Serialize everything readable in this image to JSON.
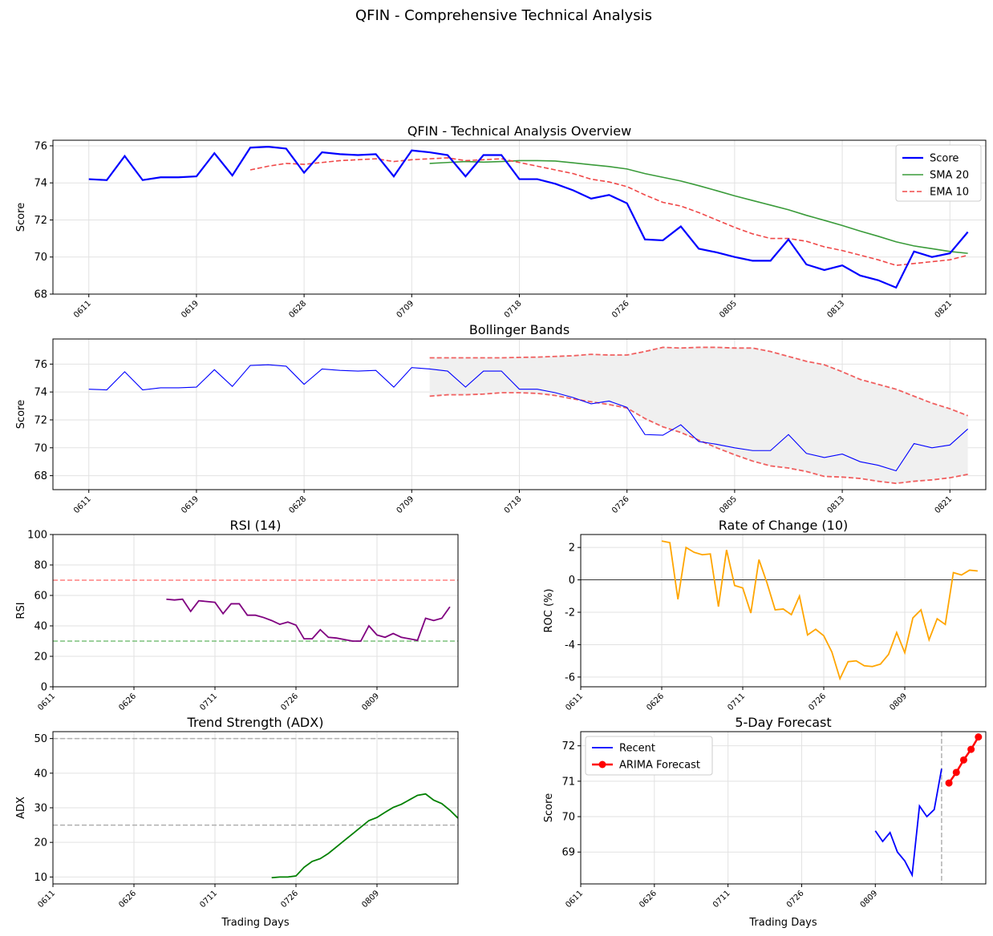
{
  "figure_title": "QFIN - Comprehensive Technical Analysis",
  "colors": {
    "score": "#0000ff",
    "sma": "#3a9b3a",
    "ema": "#f04848",
    "band": "#f06060",
    "band_fill": "#f0f0f0",
    "rsi": "#800080",
    "rsi_over": "#ff8080",
    "rsi_under": "#7cc07c",
    "roc": "#ffa500",
    "adx": "#008000",
    "ref_line": "#b0b0b0",
    "forecast": "#ff0000"
  },
  "chart_data": [
    {
      "id": "overview",
      "type": "line",
      "title": "QFIN - Technical Analysis Overview",
      "ylabel": "Score",
      "xlim": [
        -2,
        50
      ],
      "ylim": [
        68,
        76.3
      ],
      "yticks": [
        68,
        70,
        72,
        74,
        76
      ],
      "xticks": [
        {
          "x": 0,
          "label": "0611"
        },
        {
          "x": 6,
          "label": "0619"
        },
        {
          "x": 12,
          "label": "0628"
        },
        {
          "x": 18,
          "label": "0709"
        },
        {
          "x": 24,
          "label": "0718"
        },
        {
          "x": 30,
          "label": "0726"
        },
        {
          "x": 36,
          "label": "0805"
        },
        {
          "x": 42,
          "label": "0813"
        },
        {
          "x": 48,
          "label": "0821"
        }
      ],
      "legend": "upper right",
      "series": [
        {
          "name": "Score",
          "style": "solid",
          "start": 0,
          "values": [
            74.2,
            74.15,
            75.45,
            74.15,
            74.3,
            74.3,
            74.35,
            75.6,
            74.4,
            75.9,
            75.95,
            75.85,
            74.55,
            75.65,
            75.55,
            75.5,
            75.55,
            74.35,
            75.75,
            75.65,
            75.5,
            74.35,
            75.5,
            75.5,
            74.2,
            74.2,
            73.95,
            73.6,
            73.15,
            73.35,
            72.9,
            70.95,
            70.9,
            71.65,
            70.45,
            70.25,
            70.0,
            69.8,
            69.8,
            70.95,
            69.6,
            69.3,
            69.55,
            69.0,
            68.75,
            68.35,
            70.3,
            70.0,
            70.2,
            71.35
          ]
        },
        {
          "name": "SMA 20",
          "style": "solid",
          "start": 19,
          "values": [
            75.05,
            75.1,
            75.15,
            75.12,
            75.15,
            75.2,
            75.2,
            75.18,
            75.08,
            74.98,
            74.88,
            74.75,
            74.5,
            74.3,
            74.1,
            73.85,
            73.58,
            73.3,
            73.05,
            72.8,
            72.55,
            72.25,
            71.98,
            71.7,
            71.4,
            71.12,
            70.82,
            70.6,
            70.45,
            70.3,
            70.2
          ]
        },
        {
          "name": "EMA 10",
          "style": "dashed",
          "start": 9,
          "values": [
            74.7,
            74.9,
            75.05,
            75.0,
            75.1,
            75.2,
            75.25,
            75.3,
            75.15,
            75.25,
            75.3,
            75.35,
            75.2,
            75.25,
            75.3,
            75.1,
            74.9,
            74.7,
            74.5,
            74.2,
            74.05,
            73.8,
            73.35,
            72.95,
            72.75,
            72.4,
            72.0,
            71.6,
            71.25,
            71.0,
            71.0,
            70.85,
            70.55,
            70.35,
            70.1,
            69.85,
            69.55,
            69.65,
            69.75,
            69.85,
            70.1
          ]
        }
      ]
    },
    {
      "id": "bollinger",
      "type": "line",
      "title": "Bollinger Bands",
      "ylabel": "Score",
      "xlim": [
        -2,
        50
      ],
      "ylim": [
        67,
        77.8
      ],
      "yticks": [
        68,
        70,
        72,
        74,
        76
      ],
      "xticks": [
        {
          "x": 0,
          "label": "0611"
        },
        {
          "x": 6,
          "label": "0619"
        },
        {
          "x": 12,
          "label": "0628"
        },
        {
          "x": 18,
          "label": "0709"
        },
        {
          "x": 24,
          "label": "0718"
        },
        {
          "x": 30,
          "label": "0726"
        },
        {
          "x": 36,
          "label": "0805"
        },
        {
          "x": 42,
          "label": "0813"
        },
        {
          "x": 48,
          "label": "0821"
        }
      ],
      "band_start": 19,
      "upper": [
        76.45,
        76.45,
        76.45,
        76.45,
        76.45,
        76.48,
        76.5,
        76.55,
        76.6,
        76.7,
        76.65,
        76.65,
        76.9,
        77.2,
        77.15,
        77.2,
        77.2,
        77.15,
        77.15,
        76.9,
        76.55,
        76.2,
        75.95,
        75.45,
        74.9,
        74.55,
        74.2,
        73.7,
        73.2,
        72.8,
        72.3
      ],
      "lower": [
        73.7,
        73.8,
        73.8,
        73.85,
        73.95,
        73.95,
        73.9,
        73.75,
        73.5,
        73.3,
        73.1,
        72.85,
        72.1,
        71.5,
        71.1,
        70.55,
        70.0,
        69.5,
        69.05,
        68.7,
        68.55,
        68.3,
        67.95,
        67.9,
        67.8,
        67.6,
        67.45,
        67.6,
        67.7,
        67.85,
        68.1
      ],
      "score_values": [
        74.2,
        74.15,
        75.45,
        74.15,
        74.3,
        74.3,
        74.35,
        75.6,
        74.4,
        75.9,
        75.95,
        75.85,
        74.55,
        75.65,
        75.55,
        75.5,
        75.55,
        74.35,
        75.75,
        75.65,
        75.5,
        74.35,
        75.5,
        75.5,
        74.2,
        74.2,
        73.95,
        73.6,
        73.15,
        73.35,
        72.9,
        70.95,
        70.9,
        71.65,
        70.45,
        70.25,
        70.0,
        69.8,
        69.8,
        70.95,
        69.6,
        69.3,
        69.55,
        69.0,
        68.75,
        68.35,
        70.3,
        70.0,
        70.2,
        71.35
      ]
    },
    {
      "id": "rsi",
      "type": "line",
      "title": "RSI (14)",
      "ylabel": "RSI",
      "xlim": [
        0,
        50
      ],
      "ylim": [
        0,
        100
      ],
      "yticks": [
        0,
        20,
        40,
        60,
        80,
        100
      ],
      "xticks": [
        {
          "x": 0,
          "label": "0611"
        },
        {
          "x": 10,
          "label": "0626"
        },
        {
          "x": 20,
          "label": "0711"
        },
        {
          "x": 30,
          "label": "0726"
        },
        {
          "x": 40,
          "label": "0809"
        }
      ],
      "hlines": [
        {
          "y": 70,
          "color": "rsi_over"
        },
        {
          "y": 30,
          "color": "rsi_under"
        }
      ],
      "start": 14,
      "values": [
        57.5,
        57.0,
        57.5,
        49.5,
        56.5,
        56.0,
        55.5,
        48.0,
        54.5,
        54.5,
        47.0,
        47.0,
        45.5,
        43.5,
        41.0,
        42.5,
        40.5,
        31.5,
        31.5,
        37.5,
        32.5,
        32.0,
        31.0,
        30.0,
        30.0,
        40.0,
        34.0,
        32.5,
        35.0,
        32.5,
        31.5,
        30.5,
        45.0,
        43.5,
        45.0,
        52.5
      ]
    },
    {
      "id": "roc",
      "type": "line",
      "title": "Rate of Change (10)",
      "ylabel": "ROC (%)",
      "xlim": [
        0,
        50
      ],
      "ylim": [
        -6.6,
        2.8
      ],
      "yticks": [
        -6,
        -4,
        -2,
        0,
        2
      ],
      "xticks": [
        {
          "x": 0,
          "label": "0611"
        },
        {
          "x": 10,
          "label": "0626"
        },
        {
          "x": 20,
          "label": "0711"
        },
        {
          "x": 30,
          "label": "0726"
        },
        {
          "x": 40,
          "label": "0809"
        }
      ],
      "zero_line": 0,
      "start": 10,
      "values": [
        2.4,
        2.3,
        -1.2,
        2.0,
        1.7,
        1.55,
        1.6,
        -1.65,
        1.85,
        -0.35,
        -0.5,
        -2.05,
        1.25,
        -0.2,
        -1.85,
        -1.8,
        -2.15,
        -1.0,
        -3.4,
        -3.05,
        -3.45,
        -4.45,
        -6.1,
        -5.05,
        -5.0,
        -5.3,
        -5.35,
        -5.2,
        -4.6,
        -3.25,
        -4.5,
        -2.35,
        -1.85,
        -3.7,
        -2.4,
        -2.75,
        0.45,
        0.3,
        0.6,
        0.55
      ]
    },
    {
      "id": "adx",
      "type": "line",
      "title": "Trend Strength (ADX)",
      "ylabel": "ADX",
      "xlabel": "Trading Days",
      "xlim": [
        0,
        50
      ],
      "ylim": [
        8,
        52
      ],
      "yticks": [
        10,
        20,
        30,
        40,
        50
      ],
      "xticks": [
        {
          "x": 0,
          "label": "0611"
        },
        {
          "x": 10,
          "label": "0626"
        },
        {
          "x": 20,
          "label": "0711"
        },
        {
          "x": 30,
          "label": "0726"
        },
        {
          "x": 40,
          "label": "0809"
        }
      ],
      "hlines": [
        {
          "y": 50,
          "color": "ref_line"
        },
        {
          "y": 25,
          "color": "ref_line"
        }
      ],
      "start": 27,
      "values": [
        9.8,
        10.0,
        10.0,
        10.3,
        12.8,
        14.5,
        15.3,
        16.8,
        18.7,
        20.6,
        22.5,
        24.4,
        26.3,
        27.2,
        28.7,
        30.1,
        31.0,
        32.3,
        33.6,
        34.0,
        32.2,
        31.2,
        29.3,
        27.0
      ]
    },
    {
      "id": "forecast",
      "type": "line",
      "title": "5-Day Forecast",
      "ylabel": "Score",
      "xlabel": "Trading Days",
      "xlim": [
        0,
        55
      ],
      "ylim": [
        68.1,
        72.4
      ],
      "yticks": [
        69,
        70,
        71,
        72
      ],
      "xticks": [
        {
          "x": 0,
          "label": "0611"
        },
        {
          "x": 10,
          "label": "0626"
        },
        {
          "x": 20,
          "label": "0711"
        },
        {
          "x": 30,
          "label": "0726"
        },
        {
          "x": 40,
          "label": "0809"
        }
      ],
      "vline": 49,
      "legend": "upper left",
      "series": [
        {
          "name": "Recent",
          "style": "solid",
          "start": 40,
          "values": [
            69.6,
            69.3,
            69.55,
            69.0,
            68.75,
            68.35,
            70.3,
            70.0,
            70.2,
            71.35
          ]
        },
        {
          "name": "ARIMA Forecast",
          "style": "marker",
          "start": 50,
          "values": [
            70.95,
            71.25,
            71.6,
            71.9,
            72.25
          ]
        }
      ]
    }
  ]
}
